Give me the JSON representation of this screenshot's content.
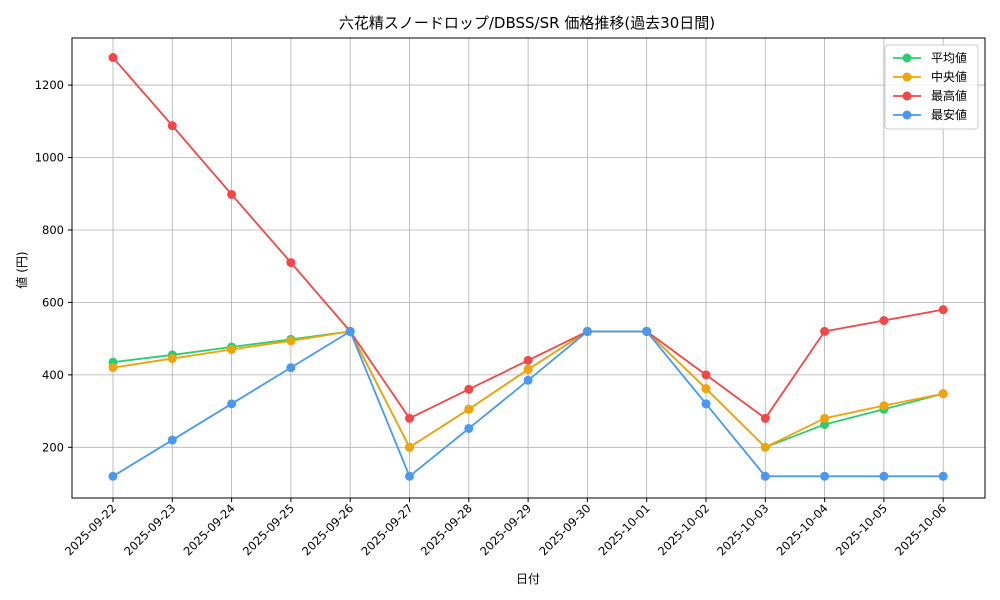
{
  "chart_data": {
    "type": "line",
    "title": "六花精スノードロップ/DBSS/SR 価格推移(過去30日間)",
    "xlabel": "日付",
    "ylabel": "値 (円)",
    "categories": [
      "2025-09-22",
      "2025-09-23",
      "2025-09-24",
      "2025-09-25",
      "2025-09-26",
      "2025-09-27",
      "2025-09-28",
      "2025-09-29",
      "2025-09-30",
      "2025-10-01",
      "2025-10-02",
      "2025-10-03",
      "2025-10-04",
      "2025-10-05",
      "2025-10-06"
    ],
    "ylim": [
      60,
      1330
    ],
    "yticks": [
      200,
      400,
      600,
      800,
      1000,
      1200
    ],
    "grid": true,
    "legend_position": "top-right",
    "series": [
      {
        "name": "平均値",
        "color": "#2ecc71",
        "values": [
          435,
          455,
          477,
          498,
          520,
          200,
          305,
          415,
          520,
          520,
          362,
          200,
          263,
          305,
          348
        ]
      },
      {
        "name": "中央値",
        "color": "#f0a30a",
        "values": [
          420,
          445,
          470,
          494,
          520,
          200,
          305,
          415,
          520,
          520,
          362,
          200,
          280,
          315,
          348
        ]
      },
      {
        "name": "最高値",
        "color": "#f04848",
        "values": [
          1276,
          1088,
          898,
          710,
          520,
          280,
          360,
          440,
          520,
          520,
          400,
          280,
          520,
          550,
          580
        ]
      },
      {
        "name": "最安値",
        "color": "#4a98f0",
        "values": [
          120,
          220,
          320,
          420,
          520,
          120,
          252,
          385,
          520,
          520,
          320,
          120,
          120,
          120,
          120
        ]
      }
    ]
  }
}
